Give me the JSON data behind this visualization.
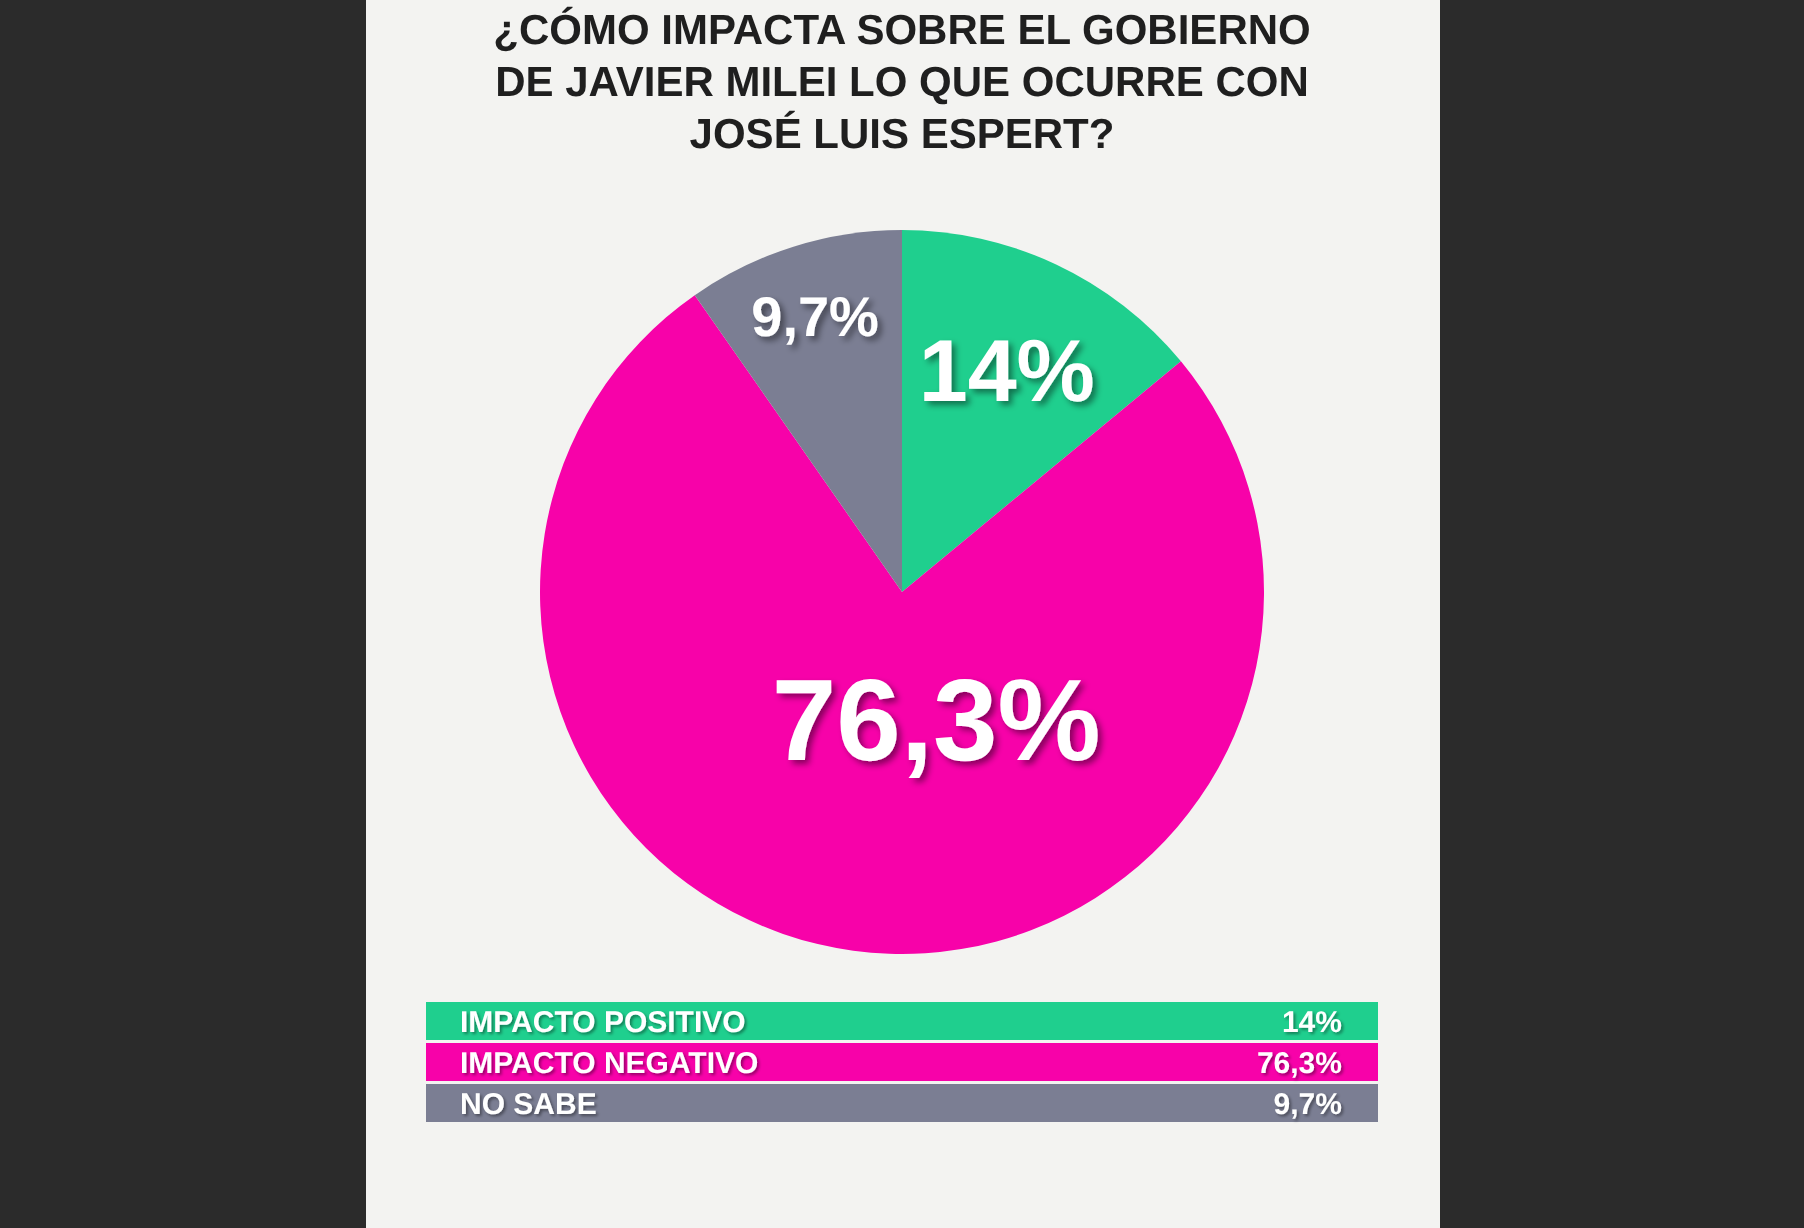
{
  "chart_data": {
    "type": "pie",
    "title": "¿CÓMO IMPACTA SOBRE EL GOBIERNO DE JAVIER MILEI LO QUE OCURRE CON JOSÉ LUIS ESPERT?",
    "categories": [
      "IMPACTO POSITIVO",
      "IMPACTO NEGATIVO",
      "NO SABE"
    ],
    "values": [
      14,
      76.3,
      9.7
    ],
    "colors": [
      "#1fcf8e",
      "#f702a9",
      "#7b7e93"
    ],
    "value_labels": [
      "14%",
      "76,3%",
      "9,7%"
    ],
    "legend": "bottom"
  }
}
